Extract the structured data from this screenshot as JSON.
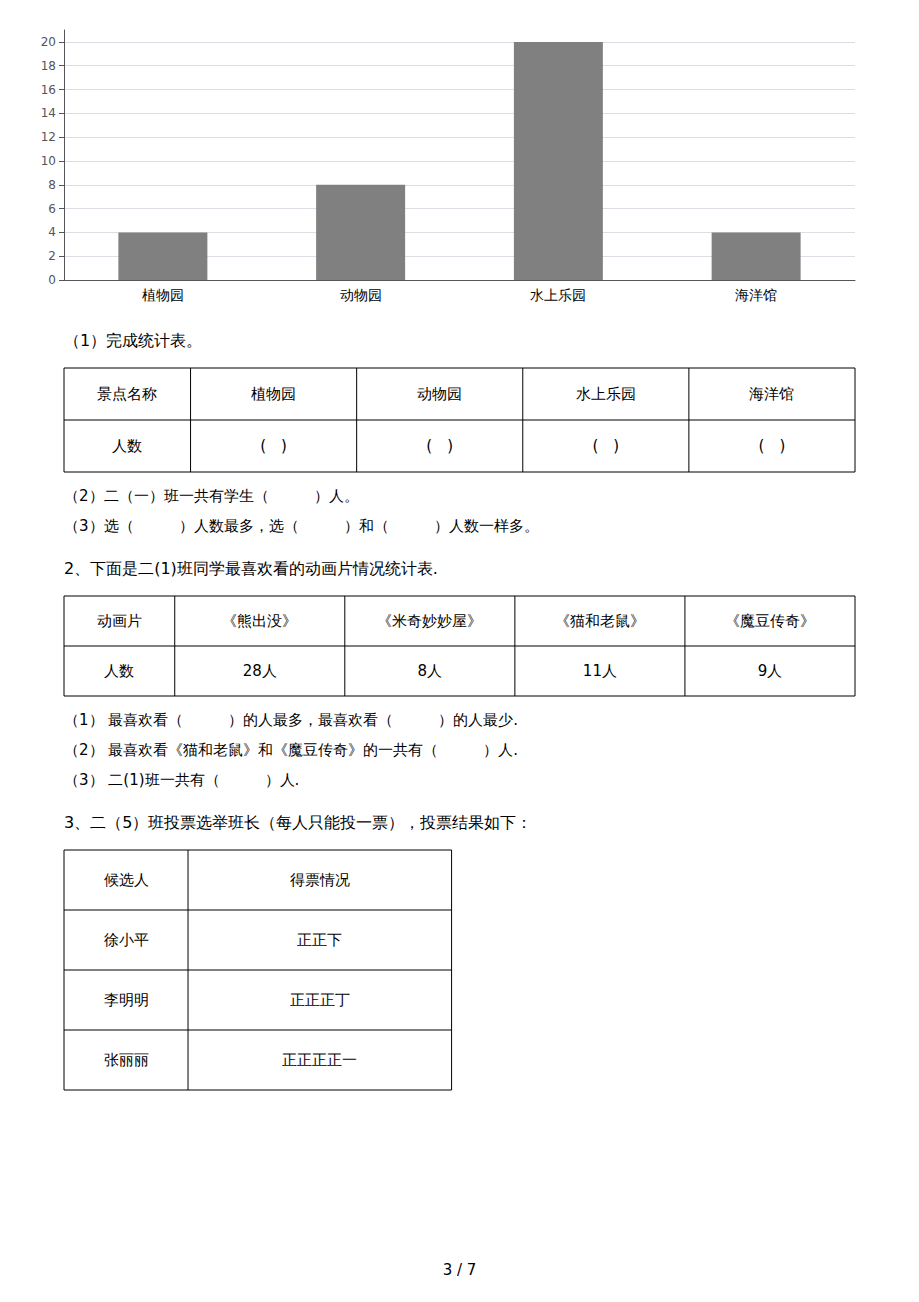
{
  "chart_data": [
    {
      "type": "bar",
      "categories": [
        "植物园",
        "动物园",
        "水上乐园",
        "海洋馆"
      ],
      "values": [
        4,
        8,
        20,
        4
      ],
      "color": "#808080",
      "ylim": [
        0,
        21
      ],
      "yticks": [
        0,
        2,
        4,
        6,
        8,
        10,
        12,
        14,
        16,
        18,
        20
      ],
      "grid": true
    },
    {
      "type": "heading",
      "text": "（1）完成统计表。"
    },
    {
      "type": "table",
      "columns": [
        "景点名称",
        "植物园",
        "动物园",
        "水上乐园",
        "海洋馆"
      ],
      "rows": [
        [
          "人数",
          "(　)",
          "(　)",
          "(　)",
          "(　)"
        ]
      ]
    },
    {
      "type": "text",
      "text": "（2）二（一）班一共有学生（　　　）人。"
    },
    {
      "type": "text",
      "text": "（3）选（　　　）人数最多，选（　　　）和（　　　）人数一样多。"
    },
    {
      "type": "heading",
      "text": "2、下面是二(1)班同学最喜欢看的动画片情况统计表."
    },
    {
      "type": "table",
      "columns": [
        "动画片",
        "《熊出没》",
        "《米奇妙妙屋》",
        "《猫和老鼠》",
        "《魔豆传奇》"
      ],
      "rows": [
        [
          "人数",
          "28人",
          "8人",
          "11人",
          "9人"
        ]
      ]
    },
    {
      "type": "text",
      "text": "（1） 最喜欢看（　　　）的人最多，最喜欢看（　　　）的人最少."
    },
    {
      "type": "text",
      "text": "（2） 最喜欢看《猫和老鼠》和《魔豆传奇》的一共有（　　　）人."
    },
    {
      "type": "text",
      "text": "（3） 二(1)班一共有（　　　）人."
    },
    {
      "type": "heading",
      "text": "3、二（5）班投票选举班长（每人只能投一票），投票结果如下："
    },
    {
      "type": "table",
      "columns": [
        "候选人",
        "得票情况"
      ],
      "rows": [
        [
          "徐小平",
          "正正下"
        ],
        [
          "李明明",
          "正正正丁"
        ],
        [
          "张丽丽",
          "正正正正一"
        ]
      ]
    },
    {
      "type": "page_number",
      "text": "3 / 7"
    }
  ]
}
